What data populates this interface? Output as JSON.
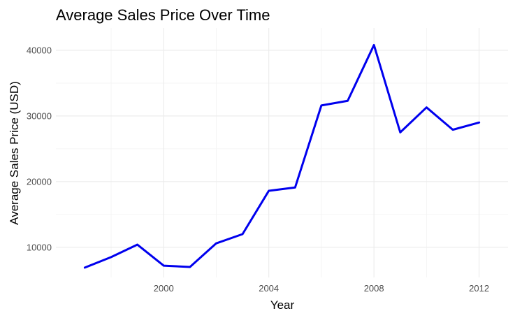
{
  "chart_data": {
    "type": "line",
    "title": "Average Sales Price Over Time",
    "xlabel": "Year",
    "ylabel": "Average Sales Price (USD)",
    "x": [
      1997,
      1998,
      1999,
      2000,
      2001,
      2002,
      2003,
      2004,
      2005,
      2006,
      2007,
      2008,
      2009,
      2010,
      2011,
      2012
    ],
    "series": [
      {
        "values": [
          6900,
          8500,
          10400,
          7200,
          7000,
          10600,
          12000,
          18600,
          19100,
          31600,
          32300,
          40800,
          27500,
          31300,
          27900,
          29000
        ],
        "color": "#0000ee"
      }
    ],
    "xlim": [
      1995.9,
      2013.1
    ],
    "ylim": [
      5400,
      43400
    ],
    "x_ticks": [
      2000,
      2004,
      2008,
      2012
    ],
    "x_tick_labels": [
      "2000",
      "2004",
      "2008",
      "2012"
    ],
    "x_minor_ticks": [
      1998,
      2002,
      2006,
      2010
    ],
    "y_ticks": [
      10000,
      20000,
      30000,
      40000
    ],
    "y_tick_labels": [
      "10000",
      "20000",
      "30000",
      "40000"
    ],
    "y_minor_ticks": [
      15000,
      25000,
      35000
    ],
    "grid": true,
    "legend": "none",
    "background": "#ffffff"
  }
}
